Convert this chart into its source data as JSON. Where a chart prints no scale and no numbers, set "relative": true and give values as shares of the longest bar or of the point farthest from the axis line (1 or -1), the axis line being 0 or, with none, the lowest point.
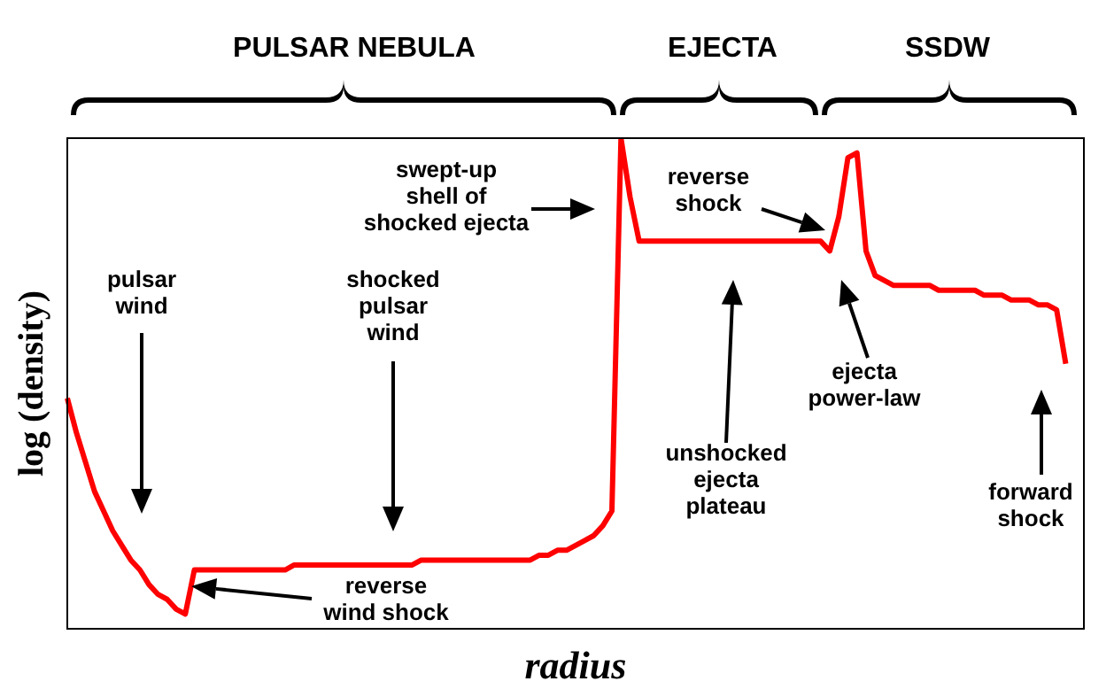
{
  "chart_data": {
    "type": "line",
    "relative": true,
    "xlabel": "radius",
    "ylabel": "log (density)",
    "categories": [
      null,
      null,
      null,
      null,
      null,
      null,
      null,
      null,
      null,
      null,
      null,
      null,
      null,
      null,
      null,
      null,
      null,
      null,
      null,
      null,
      null,
      null,
      null,
      null,
      null,
      null,
      null,
      null,
      null,
      null,
      null,
      null,
      null,
      null,
      null,
      null,
      null,
      null,
      null,
      null,
      null,
      null,
      null,
      null,
      null,
      null,
      null,
      null,
      null,
      null,
      null,
      null,
      null,
      null,
      null,
      null,
      null,
      null,
      null,
      null,
      null,
      null,
      null,
      null,
      null,
      null,
      null,
      null,
      null,
      null,
      null,
      null,
      null,
      null,
      null,
      null,
      null,
      null,
      null,
      null,
      null,
      null,
      null,
      null,
      null,
      null,
      null,
      null,
      null,
      null,
      null,
      null,
      null,
      null,
      null,
      null,
      null,
      null,
      null,
      null,
      null,
      null,
      null,
      null,
      null,
      null,
      null,
      null,
      null,
      null,
      null,
      null,
      null
    ],
    "series": [
      {
        "color": "#ff0000",
        "values": [
          0.47,
          0.4,
          0.34,
          0.28,
          0.24,
          0.2,
          0.17,
          0.14,
          0.12,
          0.09,
          0.07,
          0.06,
          0.04,
          0.03,
          0.12,
          0.12,
          0.12,
          0.12,
          0.12,
          0.12,
          0.12,
          0.12,
          0.12,
          0.12,
          0.12,
          0.13,
          0.13,
          0.13,
          0.13,
          0.13,
          0.13,
          0.13,
          0.13,
          0.13,
          0.13,
          0.13,
          0.13,
          0.13,
          0.13,
          0.14,
          0.14,
          0.14,
          0.14,
          0.14,
          0.14,
          0.14,
          0.14,
          0.14,
          0.14,
          0.14,
          0.14,
          0.14,
          0.15,
          0.15,
          0.16,
          0.16,
          0.17,
          0.18,
          0.19,
          0.21,
          0.24,
          1.0,
          0.88,
          0.79,
          0.79,
          0.79,
          0.79,
          0.79,
          0.79,
          0.79,
          0.79,
          0.79,
          0.79,
          0.79,
          0.79,
          0.79,
          0.79,
          0.79,
          0.79,
          0.79,
          0.79,
          0.79,
          0.79,
          0.79,
          0.77,
          0.84,
          0.96,
          0.97,
          0.77,
          0.72,
          0.71,
          0.7,
          0.7,
          0.7,
          0.7,
          0.7,
          0.69,
          0.69,
          0.69,
          0.69,
          0.69,
          0.68,
          0.68,
          0.68,
          0.67,
          0.67,
          0.67,
          0.66,
          0.66,
          0.65,
          0.54,
          null,
          null
        ]
      }
    ],
    "annotations": [
      "PULSAR NEBULA",
      "EJECTA",
      "SSDW",
      "swept-up\nshell of\nshocked ejecta",
      "pulsar\nwind",
      "shocked\npulsar\nwind",
      "reverse\nwind shock",
      "reverse\nshock",
      "unshocked\nejecta\nplateau",
      "ejecta\npower-law",
      "forward\nshock"
    ]
  }
}
